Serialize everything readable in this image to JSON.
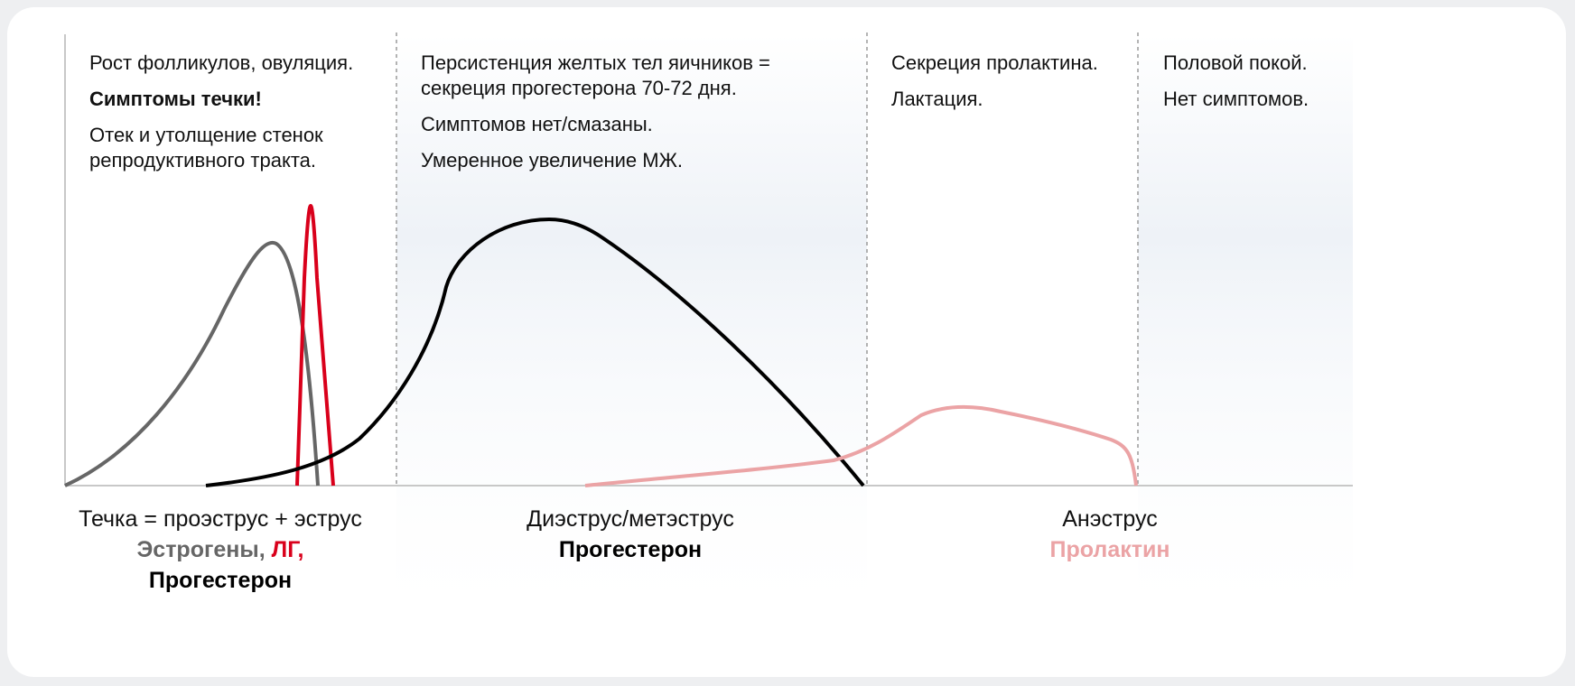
{
  "colors": {
    "estrogen": "#666666",
    "lh": "#d9001b",
    "progesterone": "#000000",
    "prolactin": "#eba3a5",
    "shade": "#eef2f7",
    "axis": "#c8c8c8",
    "divider": "#9a9a9a"
  },
  "phases": [
    {
      "notes": [
        {
          "text": "Рост фолликулов, овуляция.",
          "bold": false
        },
        {
          "text": "Симптомы течки!",
          "bold": true
        },
        {
          "text": "Отек и утолщение стенок репродуктивного тракта.",
          "bold": false
        }
      ],
      "caption": "Течка = проэструс + эструс",
      "hormones": [
        {
          "text": "Эстрогены",
          "color": "#666666"
        },
        {
          "text": ", ",
          "color": "#666666"
        },
        {
          "text": "ЛГ,",
          "color": "#d9001b"
        },
        {
          "text": "Прогестерон",
          "color": "#000000"
        }
      ]
    },
    {
      "notes": [
        {
          "text": "Персистенция желтых тел яичников = секреция прогестерона 70-72 дня.",
          "bold": false
        },
        {
          "text": "Симптомов нет/смазаны.",
          "bold": false
        },
        {
          "text": "Умеренное увеличение МЖ.",
          "bold": false
        }
      ],
      "caption": "Диэструс/метэструс",
      "hormones": [
        {
          "text": "Прогестерон",
          "color": "#000000"
        }
      ]
    },
    {
      "notes": [
        {
          "text": "Секреция пролактина.",
          "bold": false
        },
        {
          "text": "Лактация.",
          "bold": false
        }
      ],
      "caption": "Анэструс",
      "hormones": [
        {
          "text": "Пролактин",
          "color": "#eba3a5"
        }
      ]
    },
    {
      "notes": [
        {
          "text": "Половой покой.",
          "bold": false
        },
        {
          "text": "Нет симптомов.",
          "bold": false
        }
      ]
    }
  ],
  "curves": [
    {
      "id": "estrogen",
      "color": "#666666"
    },
    {
      "id": "lh",
      "color": "#d9001b"
    },
    {
      "id": "progesterone",
      "color": "#000000"
    },
    {
      "id": "prolactin",
      "color": "#eba3a5"
    }
  ]
}
